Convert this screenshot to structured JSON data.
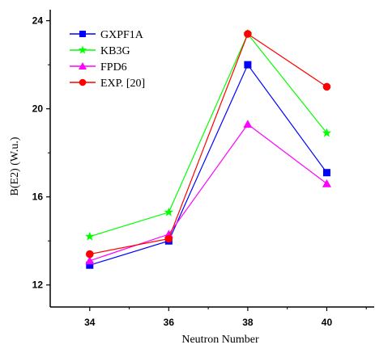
{
  "chart_data": {
    "type": "line",
    "xlabel": "Neutron Number",
    "ylabel": "B(E2) (W.u.)",
    "x": [
      34,
      36,
      38,
      40
    ],
    "xticks": [
      "34",
      "36",
      "38",
      "40"
    ],
    "xlim": [
      33,
      41.2
    ],
    "yticks": [
      "12",
      "16",
      "20",
      "24"
    ],
    "ylim": [
      11.0,
      24.5
    ],
    "legend_position": "top-left",
    "grid": false,
    "series": [
      {
        "name": "GXPF1A",
        "values": [
          12.9,
          14.0,
          22.0,
          17.1
        ],
        "color": "#0000ff",
        "marker": "square"
      },
      {
        "name": "KB3G",
        "values": [
          14.2,
          15.3,
          23.4,
          18.9
        ],
        "color": "#00ff00",
        "marker": "star"
      },
      {
        "name": "FPD6",
        "values": [
          13.1,
          14.3,
          19.3,
          16.6
        ],
        "color": "#ff00ff",
        "marker": "triangle"
      },
      {
        "name": "EXP. [20]",
        "values": [
          13.4,
          14.1,
          23.4,
          21.0
        ],
        "color": "#ff0000",
        "marker": "circle"
      }
    ]
  }
}
